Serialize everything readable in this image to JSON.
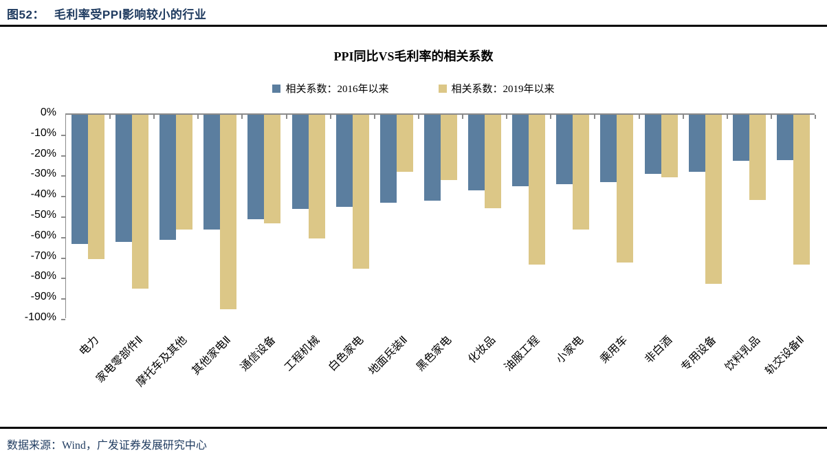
{
  "figure": {
    "number_label": "图52：",
    "title": "毛利率受PPI影响较小的行业"
  },
  "footer": {
    "source": "数据来源：Wind，广发证券发展研究中心"
  },
  "chart_data": {
    "type": "bar",
    "title": "PPI同比VS毛利率的相关系数",
    "categories": [
      "电力",
      "家电零部件Ⅱ",
      "摩托车及其他",
      "其他家电Ⅱ",
      "通信设备",
      "工程机械",
      "白色家电",
      "地面兵装Ⅱ",
      "黑色家电",
      "化妆品",
      "油服工程",
      "小家电",
      "乘用车",
      "非白酒",
      "专用设备",
      "饮料乳品",
      "轨交设备Ⅱ"
    ],
    "series": [
      {
        "name": "相关系数：2016年以来",
        "color": "#5B7E9F",
        "values": [
          -63,
          -62,
          -61,
          -56,
          -51,
          -46,
          -45,
          -43,
          -42,
          -37,
          -35,
          -34,
          -33,
          -29,
          -28,
          -22.5,
          -22
        ]
      },
      {
        "name": "相关系数：2019年以来",
        "color": "#DCC787",
        "values": [
          -70.5,
          -85,
          -56,
          -95,
          -53,
          -60.5,
          -75,
          -28,
          -32,
          -45.5,
          -73,
          -56,
          -72,
          -30.5,
          -82.5,
          -41.5,
          -73
        ]
      }
    ],
    "xlabel": "",
    "ylabel": "",
    "ylim": [
      -100,
      0
    ],
    "y_ticks": [
      "0%",
      "-10%",
      "-20%",
      "-30%",
      "-40%",
      "-50%",
      "-60%",
      "-70%",
      "-80%",
      "-90%",
      "-100%"
    ],
    "legend_position": "top",
    "grid": false,
    "axis_color": "#8a8a8a"
  }
}
